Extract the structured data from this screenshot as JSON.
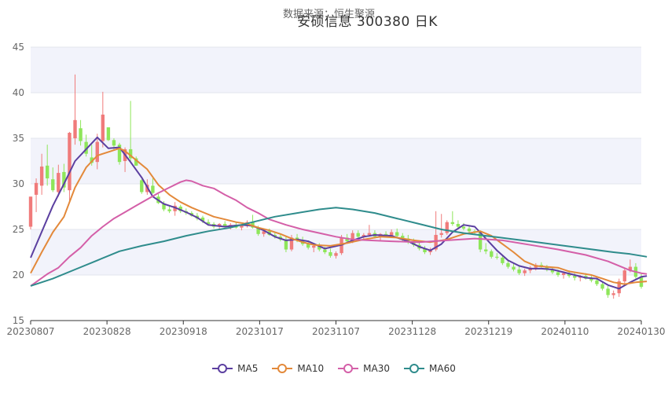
{
  "chart_data": {
    "type": "candlestick",
    "title": "安硕信息 300380        日K",
    "subtitle": "数据来源：恒生聚源",
    "ylim": [
      15,
      45
    ],
    "yticks": [
      15,
      20,
      25,
      30,
      35,
      40,
      45
    ],
    "xticks": [
      "20230807",
      "20230828",
      "20230918",
      "20231017",
      "20231107",
      "20231128",
      "20231219",
      "20240110",
      "20240130"
    ],
    "grid": true,
    "legend_position": "bottom",
    "colors": {
      "up": "#f07b7b",
      "down": "#8ee65a",
      "MA5": "#5b3fa0",
      "MA10": "#e3893a",
      "MA30": "#d45fa8",
      "MA60": "#2f8c8c",
      "band": "#f2f3fb"
    },
    "candles": [
      [
        25.3,
        28.6,
        25.0,
        28.6
      ],
      [
        28.8,
        30.6,
        26.9,
        30.1
      ],
      [
        29.8,
        33.3,
        28.8,
        31.9
      ],
      [
        32.0,
        34.3,
        29.8,
        30.6
      ],
      [
        30.5,
        31.8,
        29.1,
        29.3
      ],
      [
        29.1,
        32.1,
        28.6,
        31.2
      ],
      [
        31.3,
        32.2,
        29.1,
        29.6
      ],
      [
        29.3,
        35.7,
        28.1,
        35.6
      ],
      [
        35.0,
        42.0,
        34.3,
        37.0
      ],
      [
        36.1,
        37.0,
        34.2,
        34.7
      ],
      [
        34.6,
        35.4,
        33.0,
        33.3
      ],
      [
        32.9,
        34.3,
        32.0,
        32.3
      ],
      [
        32.4,
        35.5,
        31.6,
        34.6
      ],
      [
        34.7,
        40.1,
        34.0,
        37.6
      ],
      [
        36.2,
        36.2,
        34.7,
        34.8
      ],
      [
        34.8,
        35.0,
        33.7,
        34.2
      ],
      [
        34.3,
        34.5,
        32.1,
        32.4
      ],
      [
        32.5,
        34.0,
        31.3,
        33.8
      ],
      [
        33.8,
        39.1,
        32.5,
        32.8
      ],
      [
        32.8,
        33.0,
        32.0,
        32.0
      ],
      [
        30.4,
        30.5,
        28.9,
        29.1
      ],
      [
        29.1,
        30.5,
        28.8,
        29.9
      ],
      [
        29.8,
        30.6,
        28.9,
        29.0
      ],
      [
        28.6,
        28.9,
        27.8,
        27.9
      ],
      [
        27.8,
        28.1,
        27.0,
        27.2
      ],
      [
        27.2,
        27.6,
        26.8,
        27.0
      ],
      [
        27.0,
        28.0,
        26.5,
        27.6
      ],
      [
        27.5,
        27.7,
        26.8,
        27.0
      ],
      [
        27.0,
        27.3,
        26.6,
        26.8
      ],
      [
        26.8,
        27.0,
        26.4,
        26.5
      ],
      [
        26.5,
        26.8,
        26.0,
        26.2
      ],
      [
        26.3,
        26.5,
        25.7,
        25.9
      ],
      [
        25.8,
        26.1,
        25.4,
        25.6
      ],
      [
        25.6,
        25.8,
        25.1,
        25.3
      ],
      [
        25.3,
        25.7,
        25.0,
        25.6
      ],
      [
        25.6,
        25.9,
        25.2,
        25.3
      ],
      [
        25.3,
        25.7,
        25.0,
        25.5
      ],
      [
        25.5,
        25.8,
        25.1,
        25.2
      ],
      [
        25.2,
        25.5,
        24.9,
        25.4
      ],
      [
        25.4,
        26.0,
        25.2,
        25.8
      ],
      [
        25.8,
        26.6,
        25.1,
        25.2
      ],
      [
        25.2,
        25.4,
        24.3,
        24.5
      ],
      [
        24.5,
        25.0,
        24.2,
        24.8
      ],
      [
        24.8,
        25.1,
        24.3,
        24.4
      ],
      [
        24.4,
        24.7,
        24.0,
        24.2
      ],
      [
        24.2,
        24.5,
        23.7,
        23.9
      ],
      [
        23.9,
        24.2,
        22.5,
        22.8
      ],
      [
        22.8,
        24.4,
        22.6,
        24.1
      ],
      [
        24.1,
        24.5,
        23.6,
        23.8
      ],
      [
        23.8,
        24.2,
        23.2,
        23.4
      ],
      [
        23.4,
        23.8,
        22.8,
        23.0
      ],
      [
        23.0,
        23.5,
        22.5,
        23.2
      ],
      [
        23.2,
        23.5,
        22.6,
        22.8
      ],
      [
        22.8,
        23.1,
        22.3,
        22.5
      ],
      [
        22.5,
        22.9,
        21.9,
        22.1
      ],
      [
        22.1,
        22.6,
        21.8,
        22.4
      ],
      [
        22.4,
        24.4,
        22.2,
        24.1
      ],
      [
        24.1,
        24.5,
        23.5,
        23.7
      ],
      [
        23.7,
        24.9,
        23.5,
        24.6
      ],
      [
        24.6,
        24.9,
        24.0,
        24.2
      ],
      [
        24.2,
        24.6,
        23.8,
        24.4
      ],
      [
        24.4,
        25.5,
        24.2,
        24.6
      ],
      [
        24.6,
        24.9,
        24.0,
        24.2
      ],
      [
        24.2,
        24.6,
        23.8,
        24.5
      ],
      [
        24.5,
        24.8,
        24.1,
        24.3
      ],
      [
        24.3,
        25.0,
        24.2,
        24.7
      ],
      [
        24.7,
        25.1,
        24.0,
        24.3
      ],
      [
        24.3,
        24.6,
        23.7,
        24.0
      ],
      [
        24.0,
        24.4,
        23.4,
        23.6
      ],
      [
        23.6,
        24.0,
        23.1,
        23.3
      ],
      [
        23.3,
        23.6,
        22.7,
        22.9
      ],
      [
        22.9,
        23.2,
        22.3,
        22.5
      ],
      [
        22.5,
        23.0,
        22.2,
        22.8
      ],
      [
        22.8,
        27.0,
        22.6,
        24.4
      ],
      [
        24.4,
        26.7,
        24.1,
        24.6
      ],
      [
        24.6,
        26.0,
        24.4,
        25.8
      ],
      [
        25.8,
        27.0,
        25.4,
        25.6
      ],
      [
        25.6,
        26.0,
        25.1,
        25.3
      ],
      [
        25.3,
        25.7,
        24.9,
        25.1
      ],
      [
        25.1,
        25.4,
        24.6,
        24.8
      ],
      [
        24.8,
        25.0,
        24.4,
        24.7
      ],
      [
        24.7,
        24.9,
        22.5,
        22.8
      ],
      [
        22.8,
        23.5,
        22.3,
        22.6
      ],
      [
        22.6,
        22.8,
        21.8,
        22.0
      ],
      [
        22.0,
        22.4,
        21.7,
        21.9
      ],
      [
        21.9,
        22.2,
        21.1,
        21.3
      ],
      [
        21.3,
        21.6,
        20.7,
        20.9
      ],
      [
        20.9,
        21.3,
        20.4,
        20.6
      ],
      [
        20.6,
        21.0,
        20.0,
        20.2
      ],
      [
        20.2,
        20.7,
        19.9,
        20.5
      ],
      [
        20.5,
        21.0,
        20.2,
        20.8
      ],
      [
        20.8,
        21.3,
        20.5,
        21.1
      ],
      [
        21.1,
        21.4,
        20.8,
        20.9
      ],
      [
        20.9,
        21.1,
        20.4,
        20.6
      ],
      [
        20.6,
        20.9,
        20.1,
        20.3
      ],
      [
        20.3,
        20.6,
        19.8,
        20.0
      ],
      [
        20.0,
        20.4,
        19.6,
        20.2
      ],
      [
        20.2,
        20.5,
        19.7,
        19.9
      ],
      [
        19.9,
        20.2,
        19.4,
        19.7
      ],
      [
        19.7,
        20.0,
        19.3,
        19.9
      ],
      [
        19.9,
        20.2,
        19.5,
        19.6
      ],
      [
        19.6,
        19.9,
        19.2,
        19.4
      ],
      [
        19.4,
        19.7,
        18.8,
        19.0
      ],
      [
        19.0,
        19.3,
        18.3,
        18.5
      ],
      [
        18.5,
        18.8,
        17.5,
        17.8
      ],
      [
        17.8,
        18.3,
        17.4,
        18.0
      ],
      [
        18.0,
        19.6,
        17.6,
        19.3
      ],
      [
        19.3,
        20.7,
        18.9,
        20.5
      ],
      [
        20.5,
        21.7,
        20.3,
        20.9
      ],
      [
        20.9,
        21.3,
        19.6,
        19.8
      ],
      [
        19.8,
        20.2,
        18.5,
        18.7
      ]
    ],
    "series": [
      {
        "name": "MA5",
        "points": [
          [
            0,
            21.9
          ],
          [
            4,
            27.6
          ],
          [
            6,
            30.0
          ],
          [
            8,
            32.5
          ],
          [
            10,
            33.8
          ],
          [
            12,
            35.1
          ],
          [
            14,
            33.9
          ],
          [
            16,
            34.0
          ],
          [
            18,
            32.4
          ],
          [
            20,
            30.7
          ],
          [
            22,
            28.6
          ],
          [
            24,
            27.8
          ],
          [
            26,
            27.4
          ],
          [
            28,
            26.9
          ],
          [
            30,
            26.3
          ],
          [
            32,
            25.5
          ],
          [
            35,
            25.3
          ],
          [
            38,
            25.5
          ],
          [
            40,
            25.4
          ],
          [
            42,
            24.9
          ],
          [
            44,
            24.2
          ],
          [
            46,
            23.8
          ],
          [
            48,
            23.9
          ],
          [
            50,
            23.7
          ],
          [
            53,
            22.9
          ],
          [
            56,
            23.3
          ],
          [
            58,
            23.8
          ],
          [
            60,
            24.2
          ],
          [
            62,
            24.4
          ],
          [
            65,
            24.3
          ],
          [
            68,
            23.7
          ],
          [
            70,
            23.1
          ],
          [
            72,
            22.7
          ],
          [
            74,
            23.4
          ],
          [
            76,
            24.7
          ],
          [
            78,
            25.5
          ],
          [
            80,
            25.3
          ],
          [
            82,
            24.0
          ],
          [
            84,
            22.7
          ],
          [
            86,
            21.6
          ],
          [
            88,
            21.0
          ],
          [
            90,
            20.7
          ],
          [
            92,
            20.7
          ],
          [
            94,
            20.6
          ],
          [
            96,
            20.3
          ],
          [
            98,
            20.0
          ],
          [
            100,
            19.7
          ],
          [
            102,
            19.6
          ],
          [
            104,
            18.9
          ],
          [
            106,
            18.5
          ],
          [
            108,
            19.2
          ],
          [
            110,
            19.8
          ],
          [
            111,
            19.9
          ]
        ]
      },
      {
        "name": "MA10",
        "points": [
          [
            0,
            20.2
          ],
          [
            2,
            22.5
          ],
          [
            4,
            24.7
          ],
          [
            6,
            26.4
          ],
          [
            8,
            29.6
          ],
          [
            10,
            31.8
          ],
          [
            12,
            33.1
          ],
          [
            14,
            33.5
          ],
          [
            16,
            33.9
          ],
          [
            17,
            33.6
          ],
          [
            19,
            32.6
          ],
          [
            21,
            31.6
          ],
          [
            23,
            29.9
          ],
          [
            25,
            28.8
          ],
          [
            27,
            28.0
          ],
          [
            29,
            27.4
          ],
          [
            31,
            26.9
          ],
          [
            33,
            26.4
          ],
          [
            35,
            26.1
          ],
          [
            37,
            25.8
          ],
          [
            39,
            25.6
          ],
          [
            41,
            25.2
          ],
          [
            43,
            24.9
          ],
          [
            45,
            24.5
          ],
          [
            47,
            24.0
          ],
          [
            49,
            23.6
          ],
          [
            51,
            23.3
          ],
          [
            54,
            23.2
          ],
          [
            57,
            23.5
          ],
          [
            60,
            23.9
          ],
          [
            63,
            24.2
          ],
          [
            66,
            24.1
          ],
          [
            69,
            23.8
          ],
          [
            72,
            23.6
          ],
          [
            75,
            23.9
          ],
          [
            78,
            24.5
          ],
          [
            81,
            24.8
          ],
          [
            83,
            24.3
          ],
          [
            85,
            23.4
          ],
          [
            87,
            22.5
          ],
          [
            89,
            21.5
          ],
          [
            91,
            21.0
          ],
          [
            93,
            20.9
          ],
          [
            95,
            20.8
          ],
          [
            97,
            20.4
          ],
          [
            99,
            20.2
          ],
          [
            101,
            20.0
          ],
          [
            103,
            19.6
          ],
          [
            105,
            19.2
          ],
          [
            107,
            19.0
          ],
          [
            109,
            19.2
          ],
          [
            111,
            19.3
          ]
        ]
      },
      {
        "name": "MA30",
        "points": [
          [
            0,
            18.8
          ],
          [
            3,
            20.1
          ],
          [
            5,
            20.8
          ],
          [
            7,
            22.0
          ],
          [
            9,
            23.0
          ],
          [
            11,
            24.3
          ],
          [
            13,
            25.3
          ],
          [
            15,
            26.2
          ],
          [
            17,
            26.9
          ],
          [
            19,
            27.6
          ],
          [
            21,
            28.3
          ],
          [
            23,
            29.0
          ],
          [
            25,
            29.6
          ],
          [
            27,
            30.2
          ],
          [
            28,
            30.4
          ],
          [
            29,
            30.3
          ],
          [
            31,
            29.8
          ],
          [
            33,
            29.5
          ],
          [
            35,
            28.8
          ],
          [
            37,
            28.2
          ],
          [
            39,
            27.4
          ],
          [
            41,
            26.8
          ],
          [
            43,
            26.1
          ],
          [
            46,
            25.5
          ],
          [
            49,
            25.0
          ],
          [
            52,
            24.6
          ],
          [
            55,
            24.2
          ],
          [
            58,
            23.9
          ],
          [
            61,
            23.8
          ],
          [
            65,
            23.7
          ],
          [
            70,
            23.6
          ],
          [
            75,
            23.8
          ],
          [
            80,
            24.0
          ],
          [
            85,
            23.8
          ],
          [
            90,
            23.3
          ],
          [
            95,
            22.8
          ],
          [
            100,
            22.2
          ],
          [
            104,
            21.5
          ],
          [
            108,
            20.5
          ],
          [
            110,
            20.2
          ],
          [
            111,
            20.1
          ]
        ]
      },
      {
        "name": "MA60",
        "points": [
          [
            0,
            18.8
          ],
          [
            4,
            19.6
          ],
          [
            8,
            20.6
          ],
          [
            12,
            21.6
          ],
          [
            16,
            22.6
          ],
          [
            20,
            23.2
          ],
          [
            24,
            23.7
          ],
          [
            28,
            24.3
          ],
          [
            32,
            24.8
          ],
          [
            36,
            25.2
          ],
          [
            40,
            25.8
          ],
          [
            44,
            26.4
          ],
          [
            48,
            26.8
          ],
          [
            52,
            27.2
          ],
          [
            55,
            27.4
          ],
          [
            58,
            27.2
          ],
          [
            62,
            26.8
          ],
          [
            66,
            26.2
          ],
          [
            70,
            25.6
          ],
          [
            74,
            25.0
          ],
          [
            78,
            24.6
          ],
          [
            82,
            24.3
          ],
          [
            86,
            24.0
          ],
          [
            90,
            23.7
          ],
          [
            95,
            23.3
          ],
          [
            100,
            22.9
          ],
          [
            105,
            22.5
          ],
          [
            108,
            22.3
          ],
          [
            111,
            22.0
          ]
        ]
      }
    ]
  }
}
